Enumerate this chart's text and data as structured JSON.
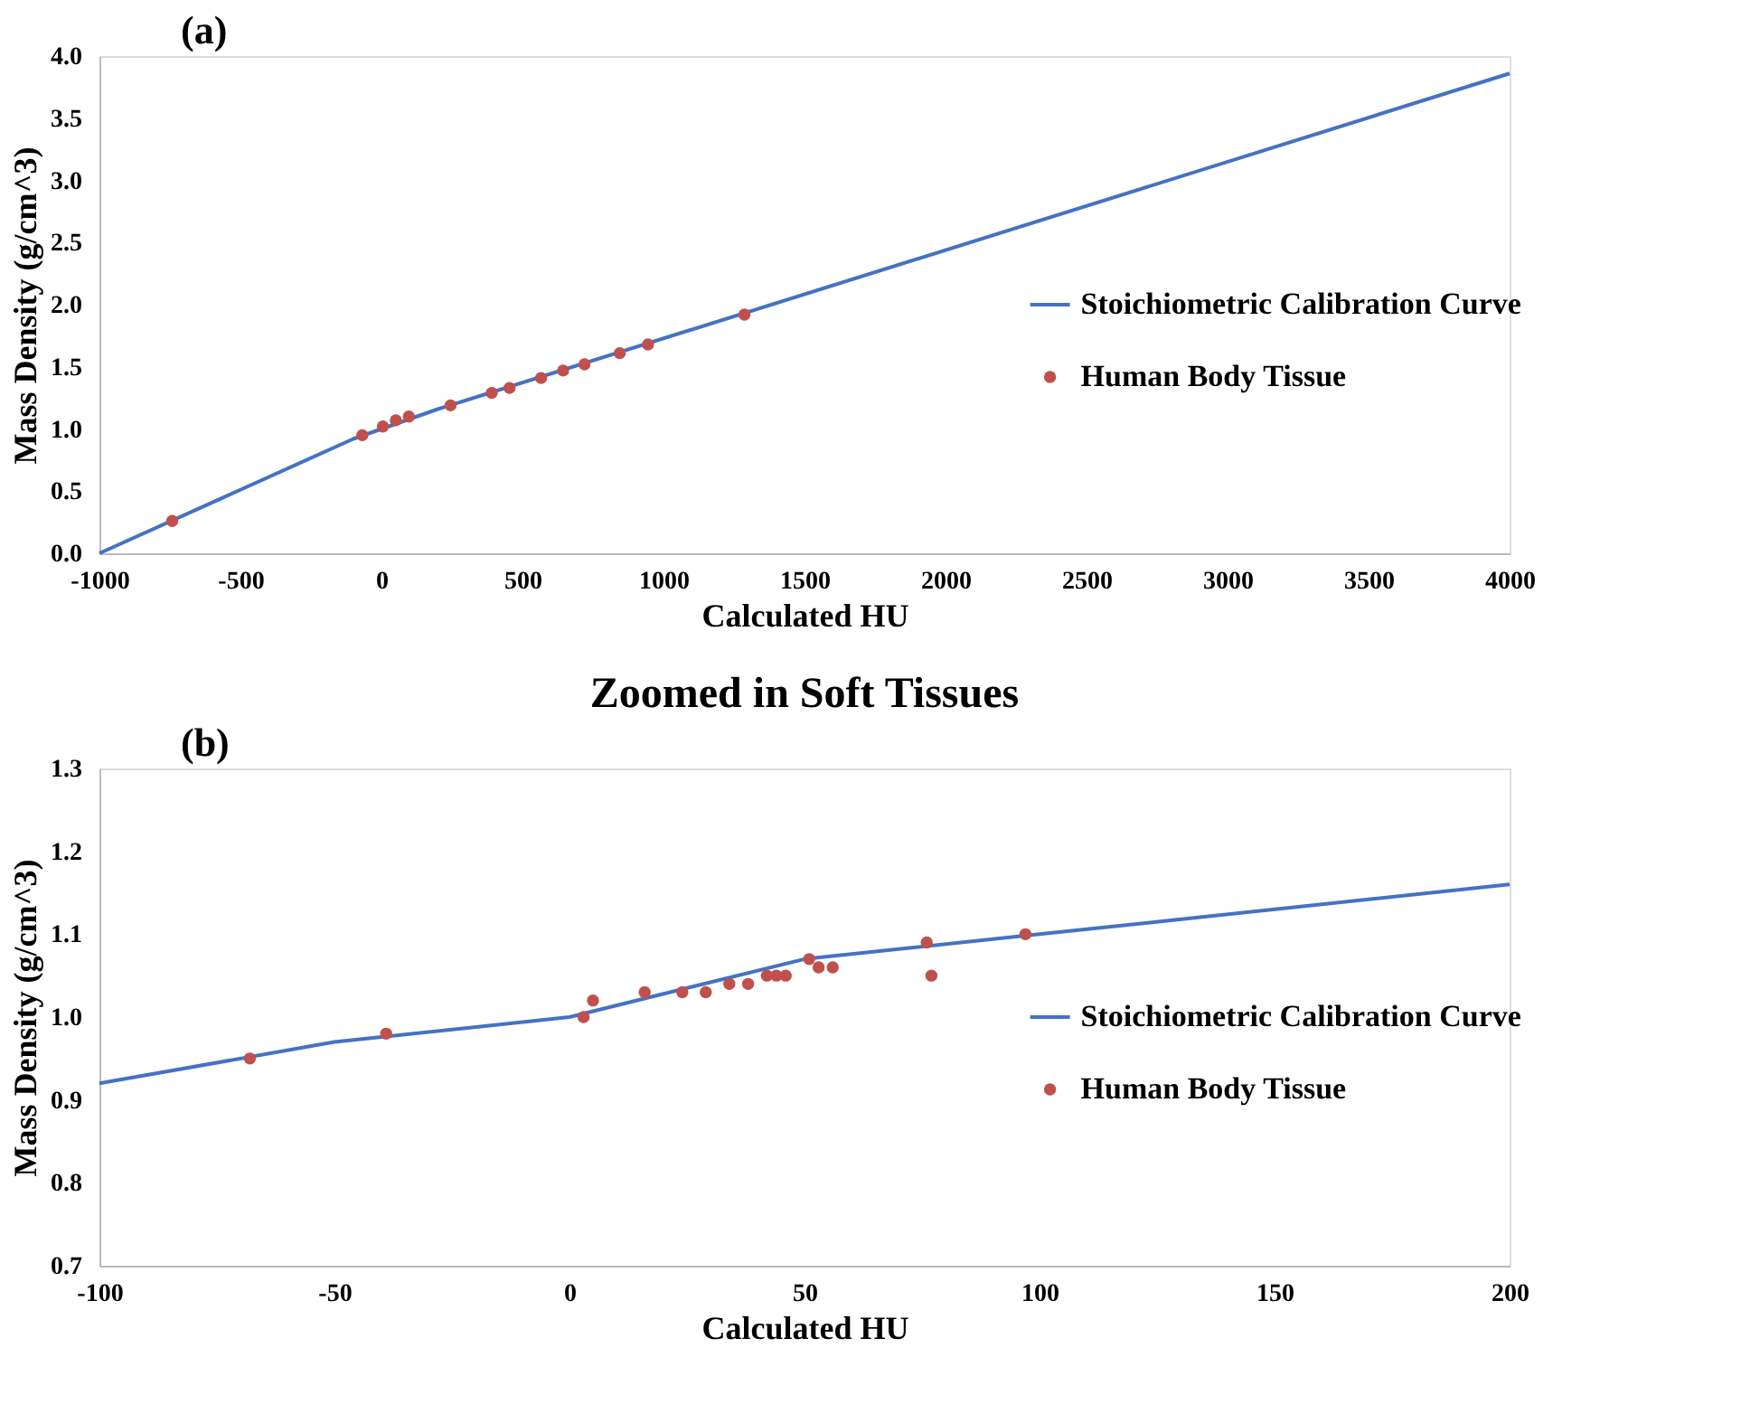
{
  "chart_data": [
    {
      "type": "scatter",
      "annotations": [
        "(a)"
      ],
      "xlabel": "Calculated HU",
      "ylabel": "Mass Density (g/cm^3)",
      "xlim": [
        -1000,
        4000
      ],
      "xticks": [
        -1000,
        -500,
        0,
        500,
        1000,
        1500,
        2000,
        2500,
        3000,
        3500,
        4000
      ],
      "ylim": [
        0,
        4
      ],
      "yticks": [
        {
          "value": 0,
          "label": "0.0"
        },
        0.5,
        {
          "value": 1,
          "label": "1.0"
        },
        1.5,
        {
          "value": 2,
          "label": "2.0"
        },
        2.5,
        {
          "value": 3,
          "label": "3.0"
        },
        3.5,
        {
          "value": 4,
          "label": "4.0"
        }
      ],
      "grid": false,
      "legend": "right",
      "series": [
        {
          "name": "Stoichiometric Calibration Curve",
          "type": "line",
          "color": "#4472c4",
          "marker": "none",
          "line_style": "solid",
          "x": [
            -1000,
            -100,
            0,
            200,
            4000
          ],
          "values": [
            0,
            0.92,
            1.0,
            1.16,
            3.86
          ]
        },
        {
          "name": "Human Body Tissue",
          "color": "#c0504d",
          "marker": "circle",
          "x": [
            -742,
            -68,
            5,
            51,
            97,
            245,
            391,
            454,
            566,
            644,
            720,
            845,
            945,
            1287
          ],
          "values": [
            0.26,
            0.95,
            1.02,
            1.07,
            1.1,
            1.19,
            1.29,
            1.33,
            1.41,
            1.47,
            1.52,
            1.61,
            1.68,
            1.92
          ]
        }
      ]
    },
    {
      "type": "scatter",
      "title": "Zoomed in Soft Tissues",
      "annotations": [
        "(b)"
      ],
      "xlabel": "Calculated HU",
      "ylabel": "Mass Density (g/cm^3)",
      "xlim": [
        -100,
        200
      ],
      "xticks": [
        -100,
        -50,
        0,
        50,
        100,
        150,
        200
      ],
      "ylim": [
        0.7,
        1.3
      ],
      "yticks": [
        0.7,
        0.8,
        0.9,
        {
          "value": 1,
          "label": "1.0"
        },
        1.1,
        1.2,
        1.3
      ],
      "grid": false,
      "legend": "right",
      "series": [
        {
          "name": "Stoichiometric Calibration Curve",
          "type": "line",
          "color": "#4472c4",
          "marker": "none",
          "line_style": "solid",
          "x": [
            -100,
            -50,
            0,
            50,
            100,
            200
          ],
          "values": [
            0.92,
            0.97,
            1.0,
            1.07,
            1.1,
            1.16
          ]
        },
        {
          "name": "Human Body Tissue",
          "color": "#c0504d",
          "marker": "circle",
          "x": [
            -68,
            -39,
            3,
            5,
            16,
            24,
            29,
            34,
            38,
            42,
            44,
            46,
            51,
            53,
            56,
            76,
            77,
            97
          ],
          "values": [
            0.95,
            0.98,
            1.0,
            1.02,
            1.03,
            1.03,
            1.03,
            1.04,
            1.04,
            1.05,
            1.05,
            1.05,
            1.07,
            1.06,
            1.06,
            1.09,
            1.05,
            1.1
          ]
        }
      ]
    }
  ]
}
